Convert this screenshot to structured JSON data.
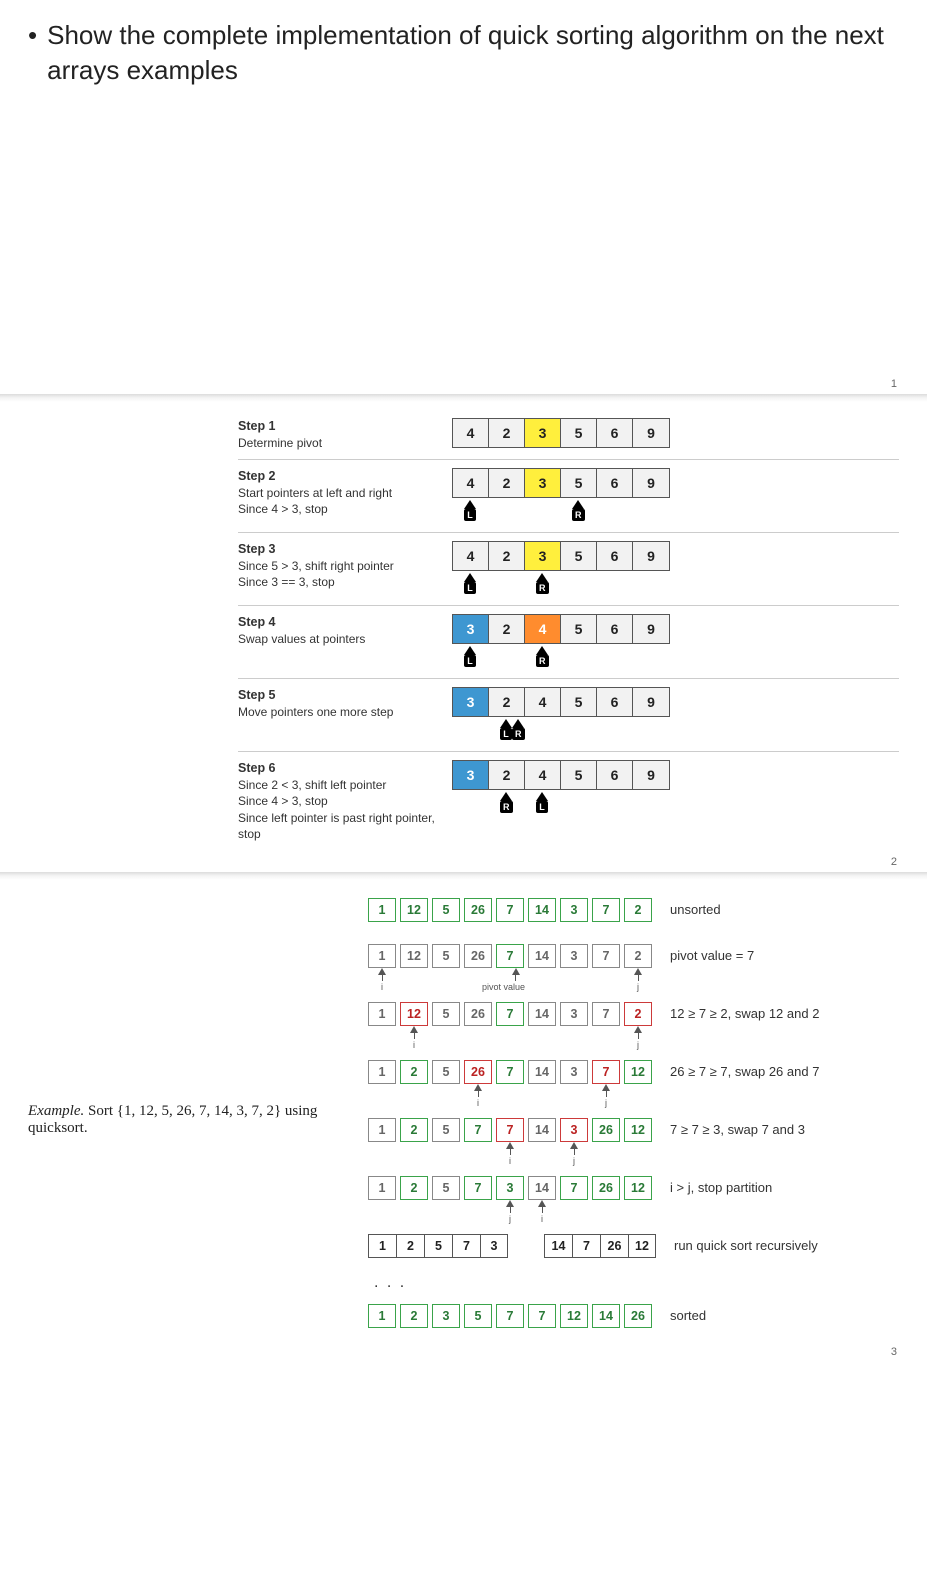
{
  "title": "Show the complete implementation of quick sorting algorithm on the next arrays examples",
  "slide_numbers": {
    "s1": "1",
    "s2": "2",
    "s3": "3"
  },
  "steps": [
    {
      "title": "Step 1",
      "lines": [
        "Determine pivot"
      ],
      "cells": [
        {
          "v": "4"
        },
        {
          "v": "2"
        },
        {
          "v": "3",
          "cls": "pivot"
        },
        {
          "v": "5"
        },
        {
          "v": "6"
        },
        {
          "v": "9"
        }
      ],
      "pointers": []
    },
    {
      "title": "Step 2",
      "lines": [
        "Start pointers at left and right",
        "Since 4 > 3, stop"
      ],
      "cells": [
        {
          "v": "4"
        },
        {
          "v": "2"
        },
        {
          "v": "3",
          "cls": "pivot"
        },
        {
          "v": "5"
        },
        {
          "v": "6"
        },
        {
          "v": "9"
        }
      ],
      "pointers": [
        {
          "idx": 0,
          "lab": "L"
        },
        {
          "idx": 3,
          "lab": "R"
        }
      ]
    },
    {
      "title": "Step 3",
      "lines": [
        "Since 5 > 3, shift right pointer",
        "Since 3 == 3, stop"
      ],
      "cells": [
        {
          "v": "4"
        },
        {
          "v": "2"
        },
        {
          "v": "3",
          "cls": "pivot"
        },
        {
          "v": "5"
        },
        {
          "v": "6"
        },
        {
          "v": "9"
        }
      ],
      "pointers": [
        {
          "idx": 0,
          "lab": "L"
        },
        {
          "idx": 2,
          "lab": "R"
        }
      ]
    },
    {
      "title": "Step 4",
      "lines": [
        "Swap values at pointers"
      ],
      "cells": [
        {
          "v": "3",
          "cls": "swapL"
        },
        {
          "v": "2"
        },
        {
          "v": "4",
          "cls": "swapR"
        },
        {
          "v": "5"
        },
        {
          "v": "6"
        },
        {
          "v": "9"
        }
      ],
      "pointers": [
        {
          "idx": 0,
          "lab": "L"
        },
        {
          "idx": 2,
          "lab": "R"
        }
      ]
    },
    {
      "title": "Step 5",
      "lines": [
        "Move pointers one more step"
      ],
      "cells": [
        {
          "v": "3",
          "cls": "swapL"
        },
        {
          "v": "2"
        },
        {
          "v": "4"
        },
        {
          "v": "5"
        },
        {
          "v": "6"
        },
        {
          "v": "9"
        }
      ],
      "pointers": [
        {
          "idx": 1,
          "lab": "L"
        },
        {
          "idx": 1,
          "lab": "R",
          "off": 12
        }
      ]
    },
    {
      "title": "Step 6",
      "lines": [
        "Since 2 < 3, shift left pointer",
        "Since 4 > 3, stop",
        "Since left pointer is past right pointer, stop"
      ],
      "cells": [
        {
          "v": "3",
          "cls": "swapL"
        },
        {
          "v": "2"
        },
        {
          "v": "4"
        },
        {
          "v": "5"
        },
        {
          "v": "6"
        },
        {
          "v": "9"
        }
      ],
      "pointers": [
        {
          "idx": 1,
          "lab": "R"
        },
        {
          "idx": 2,
          "lab": "L"
        }
      ]
    }
  ],
  "qs_example": {
    "left_italic": "Example.",
    "left_text": " Sort {1, 12, 5, 26, 7, 14, 3, 7, 2} using quicksort.",
    "rows": [
      {
        "cells": [
          {
            "v": "1",
            "c": "g"
          },
          {
            "v": "12",
            "c": "g"
          },
          {
            "v": "5",
            "c": "g"
          },
          {
            "v": "26",
            "c": "g"
          },
          {
            "v": "7",
            "c": "g"
          },
          {
            "v": "14",
            "c": "g"
          },
          {
            "v": "3",
            "c": "g"
          },
          {
            "v": "7",
            "c": "g"
          },
          {
            "v": "2",
            "c": "g"
          }
        ],
        "label": "unsorted",
        "ptrs": [],
        "tall": true
      },
      {
        "cells": [
          {
            "v": "1",
            "c": "gr"
          },
          {
            "v": "12",
            "c": "gr"
          },
          {
            "v": "5",
            "c": "gr"
          },
          {
            "v": "26",
            "c": "gr"
          },
          {
            "v": "7",
            "c": "g"
          },
          {
            "v": "14",
            "c": "gr"
          },
          {
            "v": "3",
            "c": "gr"
          },
          {
            "v": "7",
            "c": "gr"
          },
          {
            "v": "2",
            "c": "gr"
          }
        ],
        "label": "pivot value = 7",
        "ptrs": [
          {
            "idx": 0,
            "txt": "i"
          },
          {
            "idx": 4,
            "txt": "pivot value",
            "wide": true
          },
          {
            "idx": 8,
            "txt": "j"
          }
        ]
      },
      {
        "cells": [
          {
            "v": "1",
            "c": "gr"
          },
          {
            "v": "12",
            "c": "r"
          },
          {
            "v": "5",
            "c": "gr"
          },
          {
            "v": "26",
            "c": "gr"
          },
          {
            "v": "7",
            "c": "g"
          },
          {
            "v": "14",
            "c": "gr"
          },
          {
            "v": "3",
            "c": "gr"
          },
          {
            "v": "7",
            "c": "gr"
          },
          {
            "v": "2",
            "c": "r"
          }
        ],
        "label": "12 ≥ 7 ≥ 2, swap 12 and 2",
        "ptrs": [
          {
            "idx": 1,
            "txt": "i"
          },
          {
            "idx": 8,
            "txt": "j"
          }
        ]
      },
      {
        "cells": [
          {
            "v": "1",
            "c": "gr"
          },
          {
            "v": "2",
            "c": "g"
          },
          {
            "v": "5",
            "c": "gr"
          },
          {
            "v": "26",
            "c": "r"
          },
          {
            "v": "7",
            "c": "g"
          },
          {
            "v": "14",
            "c": "gr"
          },
          {
            "v": "3",
            "c": "gr"
          },
          {
            "v": "7",
            "c": "r"
          },
          {
            "v": "12",
            "c": "g"
          }
        ],
        "label": "26 ≥ 7 ≥ 7, swap 26 and 7",
        "ptrs": [
          {
            "idx": 3,
            "txt": "i"
          },
          {
            "idx": 7,
            "txt": "j"
          }
        ]
      },
      {
        "cells": [
          {
            "v": "1",
            "c": "gr"
          },
          {
            "v": "2",
            "c": "g"
          },
          {
            "v": "5",
            "c": "gr"
          },
          {
            "v": "7",
            "c": "g"
          },
          {
            "v": "7",
            "c": "r"
          },
          {
            "v": "14",
            "c": "gr"
          },
          {
            "v": "3",
            "c": "r"
          },
          {
            "v": "26",
            "c": "g"
          },
          {
            "v": "12",
            "c": "g"
          }
        ],
        "label": "7 ≥ 7 ≥ 3, swap 7 and 3",
        "ptrs": [
          {
            "idx": 4,
            "txt": "i"
          },
          {
            "idx": 6,
            "txt": "j"
          }
        ]
      },
      {
        "cells": [
          {
            "v": "1",
            "c": "gr"
          },
          {
            "v": "2",
            "c": "g"
          },
          {
            "v": "5",
            "c": "gr"
          },
          {
            "v": "7",
            "c": "g"
          },
          {
            "v": "3",
            "c": "g"
          },
          {
            "v": "14",
            "c": "gr"
          },
          {
            "v": "7",
            "c": "g"
          },
          {
            "v": "26",
            "c": "g"
          },
          {
            "v": "12",
            "c": "g"
          }
        ],
        "label": "i > j, stop partition",
        "ptrs": [
          {
            "idx": 4,
            "txt": "j"
          },
          {
            "idx": 5,
            "txt": "i"
          }
        ]
      },
      {
        "stuck_groups": [
          [
            {
              "v": "1"
            },
            {
              "v": "2"
            },
            {
              "v": "5"
            },
            {
              "v": "7"
            },
            {
              "v": "3"
            }
          ],
          [
            {
              "v": "14"
            },
            {
              "v": "7"
            },
            {
              "v": "26"
            },
            {
              "v": "12"
            }
          ]
        ],
        "label": "run quick sort recursively",
        "ptrs": [],
        "dots_after": true
      },
      {
        "cells": [
          {
            "v": "1",
            "c": "g"
          },
          {
            "v": "2",
            "c": "g"
          },
          {
            "v": "3",
            "c": "g"
          },
          {
            "v": "5",
            "c": "g"
          },
          {
            "v": "7",
            "c": "g"
          },
          {
            "v": "7",
            "c": "g"
          },
          {
            "v": "12",
            "c": "g"
          },
          {
            "v": "14",
            "c": "g"
          },
          {
            "v": "26",
            "c": "g"
          }
        ],
        "label": "sorted",
        "ptrs": []
      }
    ]
  },
  "colors": {
    "pivot": "#ffef3d",
    "swapL": "#3e97d1",
    "swapR": "#ff8c2e",
    "green": "#3aa34a",
    "grey": "#888888",
    "red": "#cc3a3a"
  }
}
